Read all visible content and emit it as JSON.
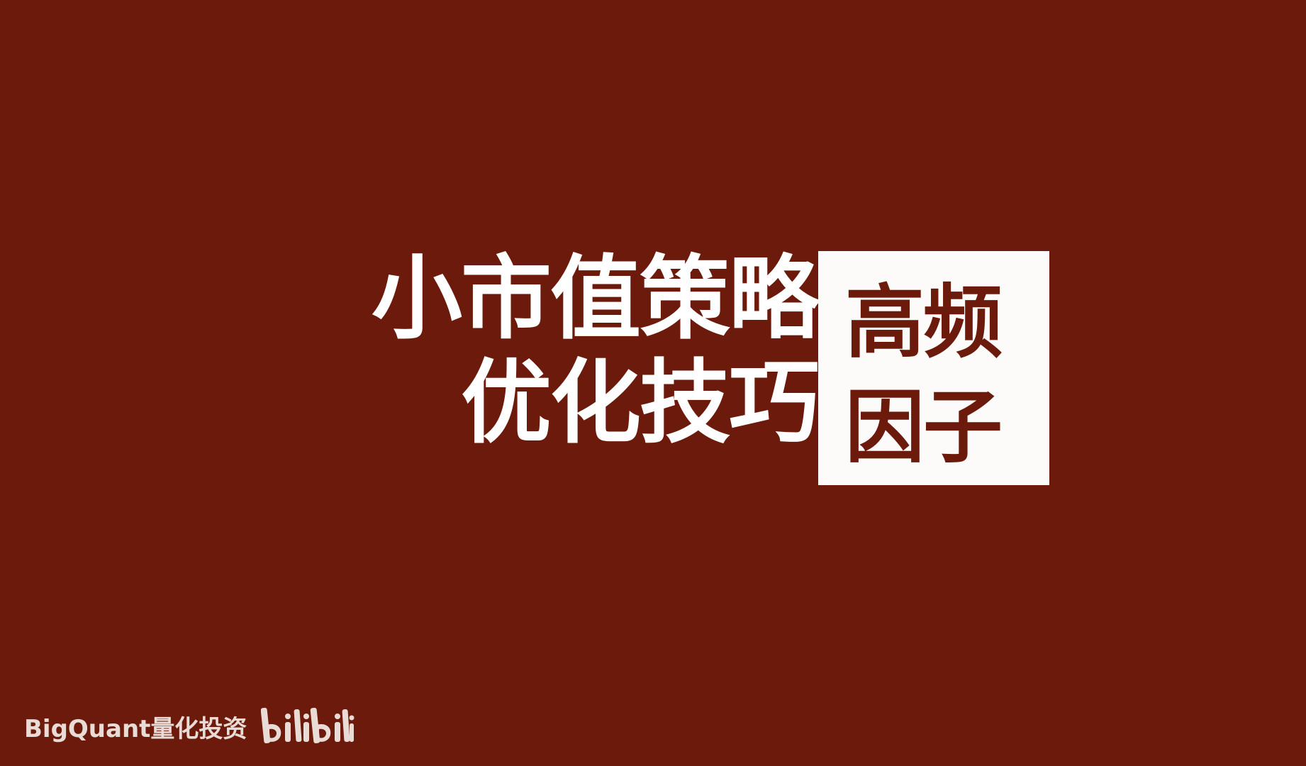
{
  "title": {
    "line1": "小市值策略",
    "line2": "优化技巧"
  },
  "tag": {
    "line1": "高频",
    "line2": "因子"
  },
  "watermark": {
    "channel": "BigQuant量化投资",
    "platform_logo": "bilibili"
  },
  "colors": {
    "background": "#6c1a0b",
    "title": "#ffffff",
    "tag_box": "#fdfbfa",
    "tag_text": "#6c1a0b",
    "watermark": "#e9dcd6"
  }
}
